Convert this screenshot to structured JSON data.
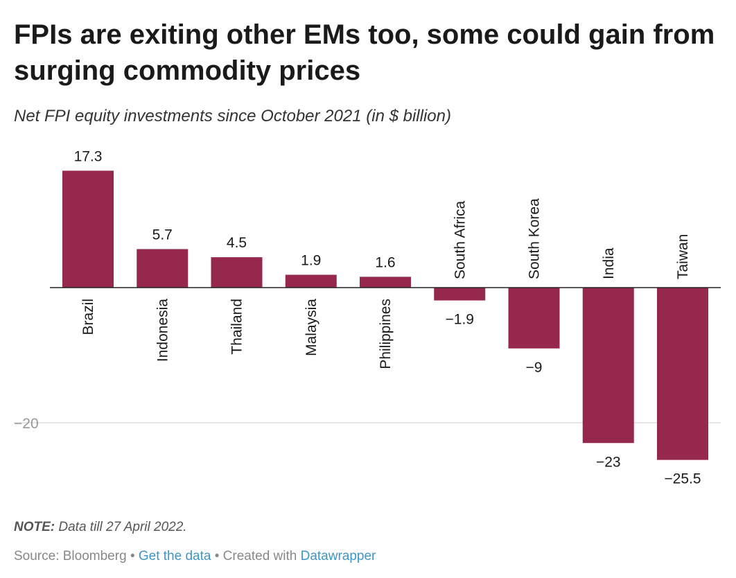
{
  "header": {
    "title": "FPIs are exiting other EMs too, some could gain from surging commodity prices",
    "subtitle": "Net FPI equity investments since October 2021 (in $ billion)"
  },
  "footer": {
    "note_label": "NOTE:",
    "note_text": "Data till 27 April 2022.",
    "source_prefix": "Source: Bloomberg",
    "separator": "•",
    "get_data_link": "Get the data",
    "created_with": "• Created with",
    "datawrapper_link": "Datawrapper"
  },
  "chart_data": {
    "type": "bar",
    "title": "FPIs are exiting other EMs too, some could gain from surging commodity prices",
    "subtitle": "Net FPI equity investments since October 2021 (in $ billion)",
    "categories": [
      "Brazil",
      "Indonesia",
      "Thailand",
      "Malaysia",
      "Philippines",
      "South Africa",
      "South Korea",
      "India",
      "Taiwan"
    ],
    "values": [
      17.3,
      5.7,
      4.5,
      1.9,
      1.6,
      -1.9,
      -9,
      -23,
      -25.5
    ],
    "value_labels": [
      "17.3",
      "5.7",
      "4.5",
      "1.9",
      "1.6",
      "−1.9",
      "−9",
      "−23",
      "−25.5"
    ],
    "y_ticks": [
      -20
    ],
    "y_tick_labels": [
      "−20"
    ],
    "ylim": [
      -26,
      18
    ],
    "xlabel": "",
    "ylabel": "",
    "grid": true,
    "bar_color": "#96284d",
    "axis_color": "#222222",
    "grid_color": "#dddddd"
  }
}
